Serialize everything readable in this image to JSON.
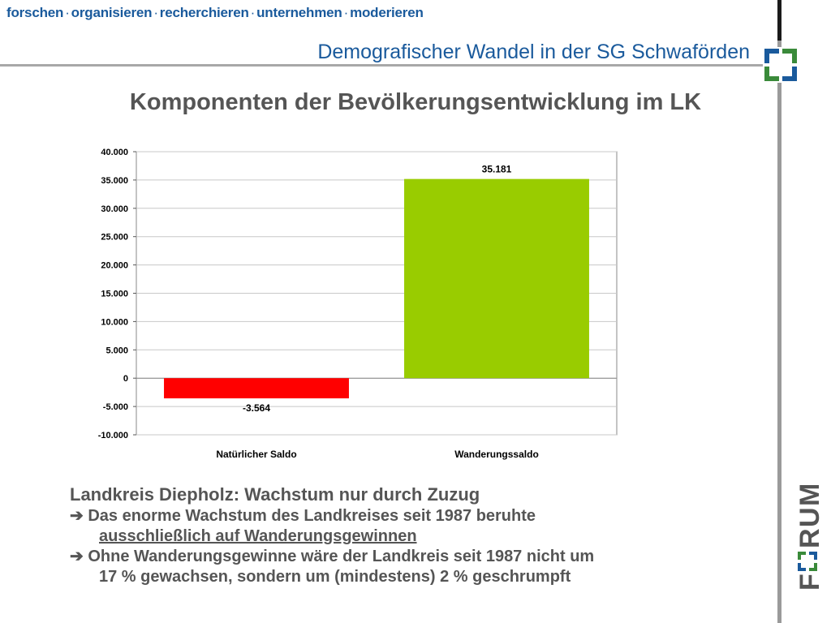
{
  "header": {
    "tagline": [
      "forschen",
      "organisieren",
      "recherchieren",
      "unternehmen",
      "moderieren"
    ],
    "tagline_separator": "·",
    "title": "Demografischer Wandel in der SG Schwaförden"
  },
  "slide": {
    "title": "Komponenten der Bevölkerungsentwicklung im LK"
  },
  "chart_data": {
    "type": "bar",
    "title": "",
    "categories": [
      "Natürlicher Saldo",
      "Wanderungssaldo"
    ],
    "values": [
      -3564,
      35181
    ],
    "data_labels": [
      "-3.564",
      "35.181"
    ],
    "bar_colors": [
      "#ff0000",
      "#99cc00"
    ],
    "ylim": [
      -10000,
      40000
    ],
    "yticks": [
      40000,
      35000,
      30000,
      25000,
      20000,
      15000,
      10000,
      5000,
      0,
      -5000,
      -10000
    ],
    "ytick_labels": [
      "40.000",
      "35.000",
      "30.000",
      "25.000",
      "20.000",
      "15.000",
      "10.000",
      "5.000",
      "0",
      "-5.000",
      "-10.000"
    ],
    "grid": true,
    "legend": "none"
  },
  "body": {
    "headline": "Landkreis Diepholz: Wachstum nur durch Zuzug",
    "bullet1_arrow": "➔",
    "bullet1_text": "Das enorme Wachstum des Landkreises seit 1987 beruhte",
    "bullet1_cont": "ausschließlich auf Wanderungsgewinnen",
    "bullet2_arrow": "➔",
    "bullet2_text": "Ohne Wanderungsgewinne wäre der Landkreis seit 1987 nicht um",
    "bullet2_cont": "17 % gewachsen, sondern um (mindestens) 2 % geschrumpft"
  },
  "branding": {
    "logo_letters": [
      "F",
      "R",
      "U",
      "M"
    ],
    "logo_colors": {
      "blue": "#1a5a9c",
      "green": "#3a8a3a",
      "dark": "#555555"
    }
  },
  "colors": {
    "accent_blue": "#1a5a9c",
    "text_gray": "#555555"
  }
}
